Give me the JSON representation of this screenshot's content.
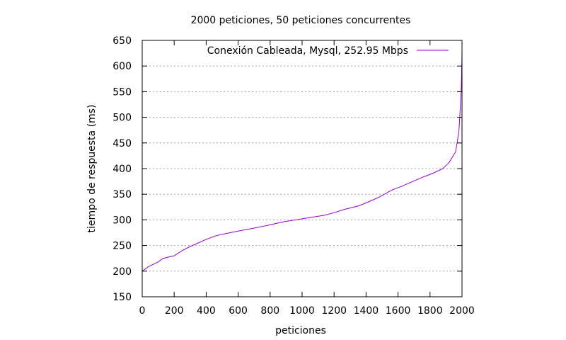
{
  "chart_data": {
    "type": "line",
    "title": "2000 peticiones, 50 peticiones concurrentes",
    "xlabel": "peticiones",
    "ylabel": "tiempo de respuesta (ms)",
    "xlim": [
      0,
      2000
    ],
    "ylim": [
      150,
      650
    ],
    "xticks": [
      0,
      200,
      400,
      600,
      800,
      1000,
      1200,
      1400,
      1600,
      1800,
      2000
    ],
    "yticks": [
      150,
      200,
      250,
      300,
      350,
      400,
      450,
      500,
      550,
      600,
      650
    ],
    "grid": "horizontal-dotted",
    "legend_position": "top-right",
    "series": [
      {
        "name": "Conexión Cableada, Mysql, 252.95 Mbps",
        "color": "#9400d3",
        "x": [
          0,
          40,
          100,
          130,
          200,
          250,
          300,
          350,
          400,
          460,
          520,
          600,
          700,
          780,
          880,
          960,
          1060,
          1140,
          1200,
          1260,
          1350,
          1400,
          1480,
          1560,
          1620,
          1700,
          1760,
          1820,
          1880,
          1920,
          1960,
          1980,
          1990,
          1996,
          2000
        ],
        "y": [
          200,
          209,
          218,
          225,
          230,
          240,
          248,
          255,
          262,
          269,
          273,
          278,
          284,
          289,
          296,
          300,
          305,
          309,
          314,
          320,
          327,
          333,
          344,
          358,
          365,
          376,
          384,
          391,
          400,
          412,
          433,
          470,
          520,
          560,
          625
        ]
      }
    ]
  }
}
